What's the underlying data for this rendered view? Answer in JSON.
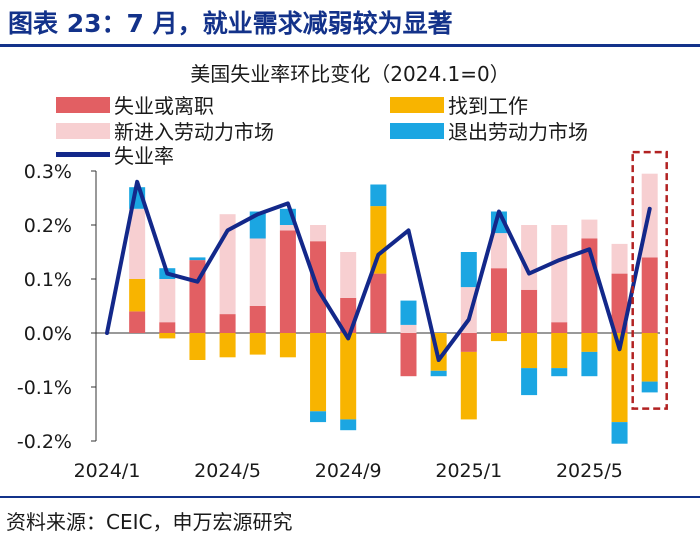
{
  "header": {
    "title": "图表 23：7 月，就业需求减弱较为显著"
  },
  "footer": {
    "source": "资料来源：CEIC，申万宏源研究"
  },
  "colors": {
    "brand": "#13328a",
    "job_losers": "#e25f63",
    "job_finders": "#f8b400",
    "new_entrants": "#f7cfd1",
    "exits": "#1ba6e2",
    "unemployment_rate": "#13288a",
    "highlight_box": "#b22222"
  },
  "chart_data": {
    "type": "bar",
    "title": "美国失业率环比变化（2024.1=0）",
    "legend": [
      {
        "key": "job_losers",
        "label": "失业或离职",
        "kind": "bar"
      },
      {
        "key": "job_finders",
        "label": "找到工作",
        "kind": "bar"
      },
      {
        "key": "new_entrants",
        "label": "新进入劳动力市场",
        "kind": "bar"
      },
      {
        "key": "exits",
        "label": "退出劳动力市场",
        "kind": "bar"
      },
      {
        "key": "unemployment_rate",
        "label": "失业率",
        "kind": "line"
      }
    ],
    "legend_position": "top",
    "x_tick_labels": [
      "2024/1",
      "2024/5",
      "2024/9",
      "2025/1",
      "2025/5"
    ],
    "x_tick_months": [
      "2024-01",
      "2024-05",
      "2024-09",
      "2025-01",
      "2025-05"
    ],
    "months": [
      "2024-01",
      "2024-02",
      "2024-03",
      "2024-04",
      "2024-05",
      "2024-06",
      "2024-07",
      "2024-08",
      "2024-09",
      "2024-10",
      "2024-11",
      "2024-12",
      "2025-01",
      "2025-02",
      "2025-03",
      "2025-04",
      "2025-05",
      "2025-06",
      "2025-07"
    ],
    "y_tick_labels": [
      "0.3%",
      "0.2%",
      "0.1%",
      "0.0%",
      "-0.1%",
      "-0.2%"
    ],
    "ylim": [
      -0.2,
      0.3
    ],
    "y_unit": "%",
    "grid": false,
    "series": [
      {
        "key": "job_losers",
        "name": "失业或离职",
        "values": [
          null,
          0.04,
          0.02,
          0.135,
          0.035,
          0.05,
          0.19,
          0.17,
          0.065,
          0.11,
          -0.08,
          0.0,
          -0.035,
          0.12,
          0.08,
          0.02,
          0.175,
          0.11,
          0.14
        ]
      },
      {
        "key": "job_finders",
        "name": "找到工作",
        "values": [
          null,
          0.06,
          -0.01,
          -0.05,
          -0.045,
          -0.04,
          -0.045,
          -0.145,
          -0.16,
          0.125,
          0.0,
          -0.07,
          -0.125,
          -0.015,
          -0.065,
          -0.065,
          -0.035,
          -0.165,
          -0.09
        ]
      },
      {
        "key": "new_entrants",
        "name": "新进入劳动力市场",
        "values": [
          null,
          0.13,
          0.08,
          0.0,
          0.185,
          0.125,
          0.01,
          0.03,
          0.085,
          0.0,
          0.015,
          0.0,
          0.085,
          0.065,
          0.12,
          0.18,
          0.035,
          0.055,
          0.155
        ]
      },
      {
        "key": "exits",
        "name": "退出劳动力市场",
        "values": [
          null,
          0.04,
          0.02,
          0.005,
          0.0,
          0.05,
          0.03,
          -0.02,
          -0.02,
          0.04,
          0.045,
          -0.01,
          0.065,
          0.04,
          -0.05,
          -0.015,
          -0.045,
          -0.04,
          -0.02
        ]
      },
      {
        "key": "unemployment_rate",
        "name": "失业率",
        "values": [
          0.0,
          0.28,
          0.11,
          0.095,
          0.19,
          0.22,
          0.24,
          0.08,
          -0.01,
          0.145,
          0.19,
          -0.05,
          0.025,
          0.225,
          0.11,
          0.135,
          0.155,
          -0.03,
          0.23
        ]
      }
    ],
    "highlight_month": "2025-07"
  }
}
